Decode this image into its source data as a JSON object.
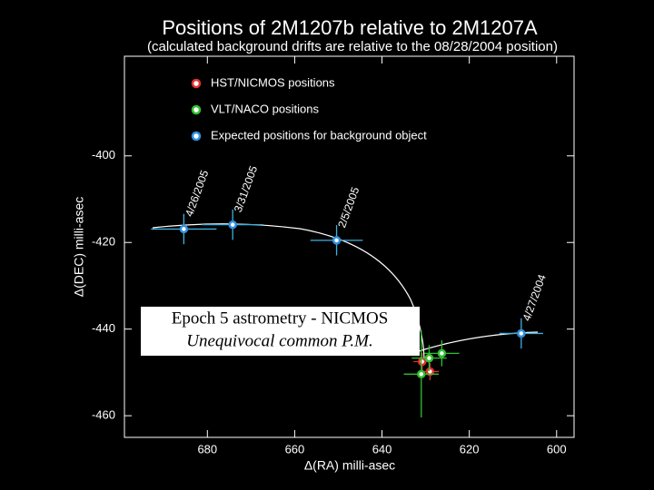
{
  "chart_data": {
    "type": "scatter",
    "title": "Positions of 2M1207b relative to 2M1207A",
    "subtitle": "(calculated background drifts are relative to the 08/28/2004 position)",
    "x_label": "Δ(RA) milli-asec",
    "y_label": "Δ(DEC) milli-asec",
    "xlim": [
      699,
      596
    ],
    "ylim": [
      -465,
      -377
    ],
    "xticks": [
      680,
      660,
      640,
      620,
      600
    ],
    "yticks": [
      -400,
      -420,
      -440,
      -460
    ],
    "legend": "upper left",
    "series": [
      {
        "name": "HST/NICMOS positions",
        "color": "#e03030",
        "x": [
          630.8,
          629.0
        ],
        "y": [
          -447.5,
          -449.8
        ],
        "xerr": [
          2,
          2
        ],
        "yerr": [
          2,
          2
        ]
      },
      {
        "name": "VLT/NACO positions",
        "color": "#30c030",
        "x": [
          631.0,
          629.2,
          626.3
        ],
        "y": [
          -450.4,
          -446.7,
          -445.6
        ],
        "xerr": [
          4,
          4,
          4
        ],
        "yerr": [
          10,
          3,
          3
        ]
      },
      {
        "name": "Expected positions for background object",
        "color": "#3090e0",
        "x": [
          685.4,
          674.2,
          650.4,
          608.1
        ],
        "y": [
          -416.9,
          -415.9,
          -419.5,
          -441.0
        ],
        "xerr": [
          7.5,
          7,
          6,
          5
        ],
        "yerr": [
          3.5,
          3.5,
          3.5,
          3.5
        ],
        "labels": [
          "4/26/2005",
          "3/31/2005",
          "2/5/2005",
          "4/27/2004"
        ]
      }
    ],
    "annotations": [
      "Epoch 5 astrometry - NICMOS",
      "Unequivocal common P.M."
    ]
  }
}
